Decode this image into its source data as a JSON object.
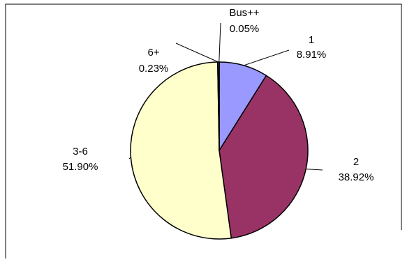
{
  "chart_data": {
    "type": "pie",
    "title": "",
    "legend": "none",
    "slices": [
      {
        "label": "1",
        "percent_label": "8.91%",
        "value": 8.91,
        "color": "#9999ff"
      },
      {
        "label": "2",
        "percent_label": "38.92%",
        "value": 38.92,
        "color": "#993366"
      },
      {
        "label": "3-6",
        "percent_label": "51.90%",
        "value": 51.9,
        "color": "#ffffcc"
      },
      {
        "label": "6+",
        "percent_label": "0.23%",
        "value": 0.23,
        "color": "#ccffff"
      },
      {
        "label": "Bus++",
        "percent_label": "0.05%",
        "value": 0.05,
        "color": "#660066"
      }
    ]
  }
}
